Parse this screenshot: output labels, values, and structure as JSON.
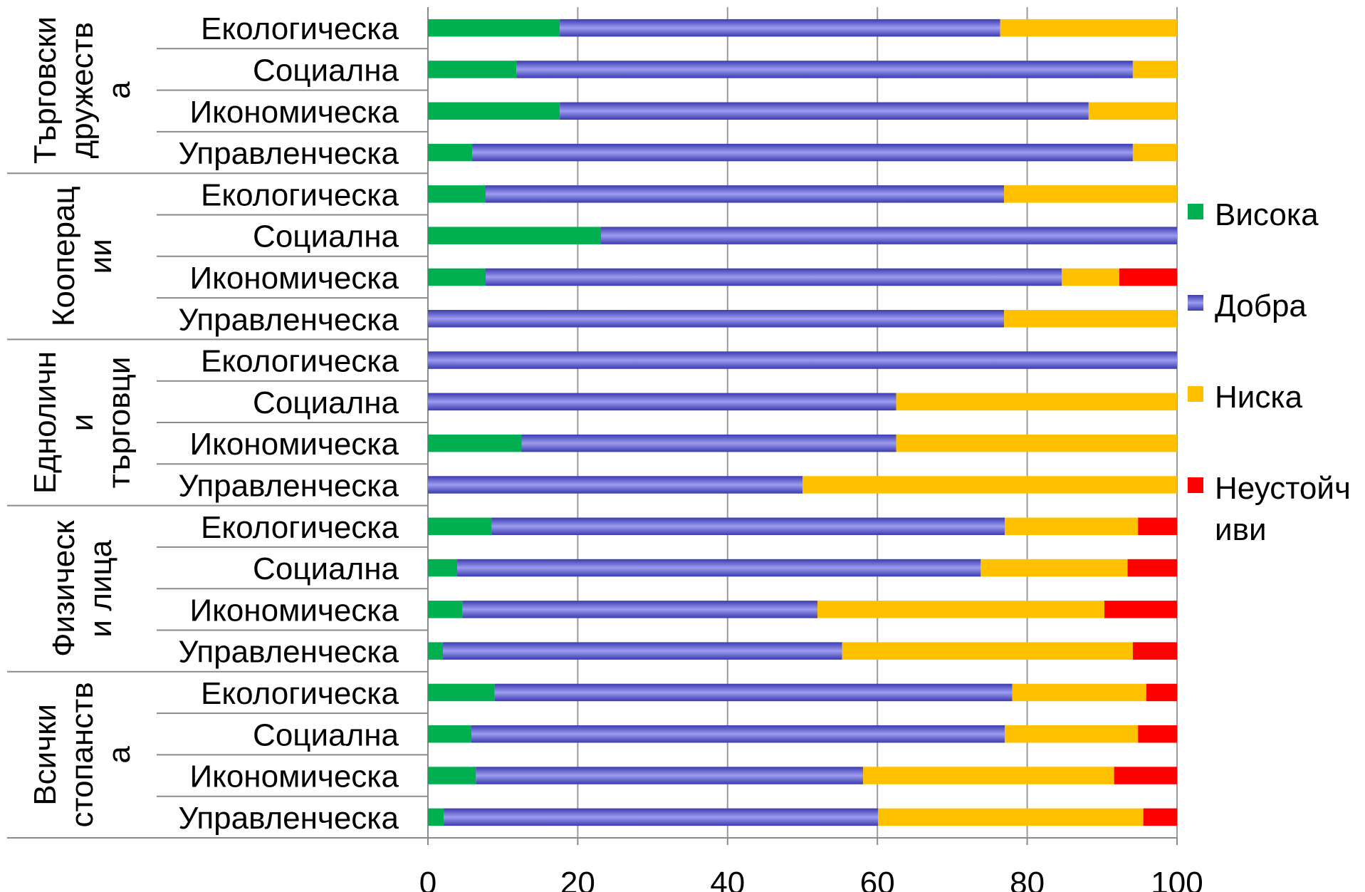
{
  "chart_data": {
    "type": "bar",
    "orientation": "horizontal",
    "stacked": true,
    "xlim": [
      0,
      100
    ],
    "xticks": [
      "0",
      "20",
      "40",
      "60",
      "80",
      "100"
    ],
    "grid": true,
    "legend_position": "right",
    "groups": [
      {
        "label_lines": [
          "Търговски",
          "дружеств",
          "а"
        ],
        "categories": [
          "Екологическа",
          "Социална",
          "Икономическа",
          "Управленческа"
        ]
      },
      {
        "label_lines": [
          "Кооперац",
          "ии"
        ],
        "categories": [
          "Екологическа",
          "Социална",
          "Икономическа",
          "Управленческа"
        ]
      },
      {
        "label_lines": [
          "Едноличн",
          "и",
          "търговци"
        ],
        "categories": [
          "Екологическа",
          "Социална",
          "Икономическа",
          "Управленческа"
        ]
      },
      {
        "label_lines": [
          "Физическ",
          "и лица"
        ],
        "categories": [
          "Екологическа",
          "Социална",
          "Икономическа",
          "Управленческа"
        ]
      },
      {
        "label_lines": [
          "Всички",
          "стопанств",
          "а"
        ],
        "categories": [
          "Екологическа",
          "Социална",
          "Икономическа",
          "Управленческа"
        ]
      }
    ],
    "series": [
      {
        "name": "Висока",
        "color": "#00b050",
        "values": [
          17.6,
          11.8,
          17.6,
          5.9,
          7.7,
          23.1,
          7.7,
          0,
          0,
          0,
          12.5,
          0,
          8.5,
          3.9,
          4.6,
          2.0,
          8.9,
          5.8,
          6.4,
          2.1
        ]
      },
      {
        "name": "Добра",
        "color": "#7272d8",
        "values": [
          58.8,
          82.3,
          70.6,
          88.2,
          69.2,
          76.9,
          76.9,
          76.9,
          100,
          62.5,
          50.0,
          50.0,
          68.5,
          69.9,
          47.4,
          53.3,
          69.1,
          71.2,
          51.7,
          58.0
        ]
      },
      {
        "name": "Ниска",
        "color": "#ffc000",
        "values": [
          23.6,
          5.9,
          11.8,
          5.9,
          23.1,
          0,
          7.7,
          23.1,
          0,
          37.5,
          37.5,
          50.0,
          17.8,
          19.6,
          38.3,
          38.8,
          17.9,
          17.8,
          33.5,
          35.4
        ]
      },
      {
        "name": "Неустойч\nиви",
        "legend_lines": [
          "Неустойч",
          "иви"
        ],
        "color": "#ff0000",
        "values": [
          0,
          0,
          0,
          0,
          0,
          0,
          7.7,
          0,
          0,
          0,
          0,
          0,
          5.2,
          6.6,
          9.7,
          5.9,
          4.1,
          5.2,
          8.4,
          4.5
        ]
      }
    ]
  }
}
